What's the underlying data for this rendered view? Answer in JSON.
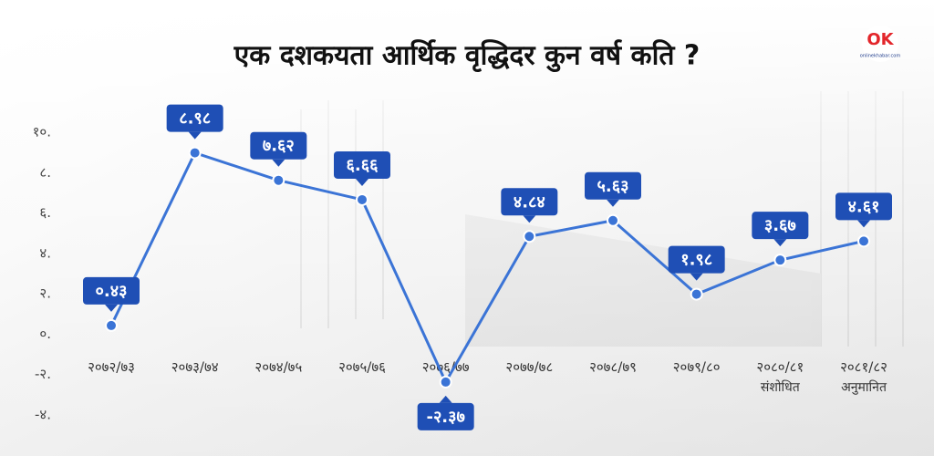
{
  "chart_data": {
    "type": "line",
    "title": "एक दशकयता आर्थिक वृद्धिदर कुन वर्ष कति ?",
    "logo": {
      "mark": "OK",
      "site": "onlinekhabar.com"
    },
    "categories": [
      "२०७२/७३",
      "२०७३/७४",
      "२०७४/७५",
      "२०७५/७६",
      "२०७६/७७",
      "२०७७/७८",
      "२०७८/७९",
      "२०७९/८०",
      "२०८०/८१",
      "२०८१/८२"
    ],
    "category_notes": [
      null,
      null,
      null,
      null,
      null,
      null,
      null,
      null,
      "संशोधित",
      "अनुमानित"
    ],
    "values": [
      0.43,
      8.98,
      7.62,
      6.66,
      -2.37,
      4.84,
      5.63,
      1.98,
      3.67,
      4.61
    ],
    "value_labels": [
      "०.४३",
      "८.९८",
      "७.६२",
      "६.६६",
      "-२.३७",
      "४.८४",
      "५.६३",
      "१.९८",
      "३.६७",
      "४.६१"
    ],
    "color": "#3b74d6",
    "label_color": "#1f4fb5",
    "ylim": [
      -4,
      10
    ],
    "yticks": [
      {
        "value": 10,
        "label": "१०."
      },
      {
        "value": 8,
        "label": "८."
      },
      {
        "value": 6,
        "label": "६."
      },
      {
        "value": 4,
        "label": "४."
      },
      {
        "value": 2,
        "label": "२."
      },
      {
        "value": 0,
        "label": "०."
      },
      {
        "value": -2,
        "label": "-२."
      },
      {
        "value": -4,
        "label": "-४."
      }
    ],
    "grid": false
  }
}
